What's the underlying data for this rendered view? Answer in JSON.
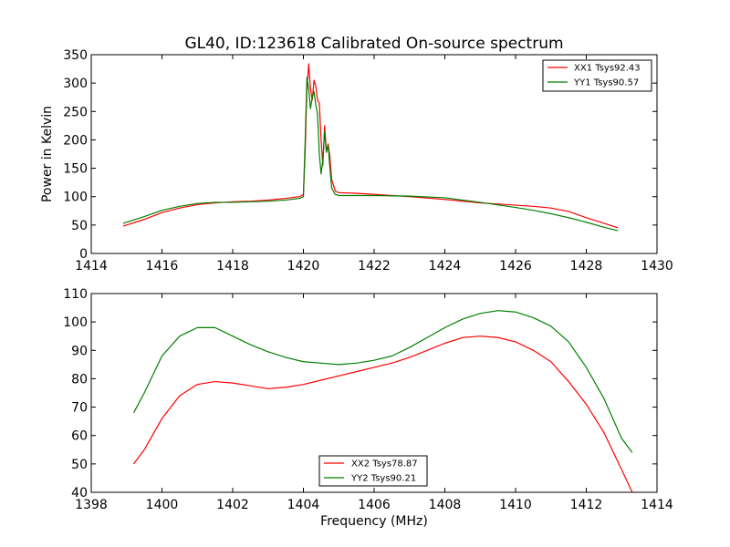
{
  "chart_data": [
    {
      "type": "line",
      "title": "GL40, ID:123618 Calibrated On-source spectrum",
      "xlabel": "",
      "ylabel": "Power in Kelvin",
      "xlim": [
        1414,
        1430
      ],
      "ylim": [
        0,
        350
      ],
      "xticks": [
        1414,
        1416,
        1418,
        1420,
        1422,
        1424,
        1426,
        1428,
        1430
      ],
      "yticks": [
        0,
        50,
        100,
        150,
        200,
        250,
        300,
        350
      ],
      "grid": false,
      "legend_position": "top-right",
      "series": [
        {
          "name": "XX1 Tsys92.43",
          "color": "#ff0000",
          "points": [
            [
              1414.9,
              48
            ],
            [
              1415.5,
              60
            ],
            [
              1416.0,
              72
            ],
            [
              1416.5,
              80
            ],
            [
              1417.0,
              86
            ],
            [
              1417.5,
              89
            ],
            [
              1418.0,
              91
            ],
            [
              1418.5,
              92
            ],
            [
              1419.0,
              94
            ],
            [
              1419.5,
              97
            ],
            [
              1419.9,
              100
            ],
            [
              1420.0,
              104
            ],
            [
              1420.05,
              180
            ],
            [
              1420.1,
              290
            ],
            [
              1420.15,
              334
            ],
            [
              1420.2,
              290
            ],
            [
              1420.25,
              270
            ],
            [
              1420.3,
              305
            ],
            [
              1420.35,
              295
            ],
            [
              1420.4,
              270
            ],
            [
              1420.45,
              265
            ],
            [
              1420.5,
              200
            ],
            [
              1420.55,
              155
            ],
            [
              1420.6,
              225
            ],
            [
              1420.65,
              180
            ],
            [
              1420.7,
              193
            ],
            [
              1420.75,
              170
            ],
            [
              1420.8,
              130
            ],
            [
              1420.9,
              110
            ],
            [
              1421.0,
              107
            ],
            [
              1421.5,
              106
            ],
            [
              1422.0,
              104
            ],
            [
              1423.0,
              100
            ],
            [
              1424.0,
              95
            ],
            [
              1425.0,
              89
            ],
            [
              1426.0,
              85
            ],
            [
              1426.5,
              83
            ],
            [
              1427.0,
              80
            ],
            [
              1427.5,
              74
            ],
            [
              1428.0,
              63
            ],
            [
              1428.5,
              53
            ],
            [
              1428.9,
              45
            ]
          ]
        },
        {
          "name": "YY1 Tsys90.57",
          "color": "#007f00",
          "points": [
            [
              1414.9,
              53
            ],
            [
              1415.5,
              65
            ],
            [
              1416.0,
              76
            ],
            [
              1416.5,
              83
            ],
            [
              1417.0,
              88
            ],
            [
              1417.5,
              90
            ],
            [
              1418.0,
              90
            ],
            [
              1418.5,
              91
            ],
            [
              1419.0,
              92
            ],
            [
              1419.5,
              94
            ],
            [
              1419.9,
              97
            ],
            [
              1420.0,
              100
            ],
            [
              1420.05,
              200
            ],
            [
              1420.1,
              310
            ],
            [
              1420.15,
              290
            ],
            [
              1420.2,
              255
            ],
            [
              1420.25,
              275
            ],
            [
              1420.3,
              285
            ],
            [
              1420.35,
              262
            ],
            [
              1420.4,
              245
            ],
            [
              1420.45,
              175
            ],
            [
              1420.5,
              140
            ],
            [
              1420.55,
              165
            ],
            [
              1420.6,
              215
            ],
            [
              1420.65,
              178
            ],
            [
              1420.7,
              190
            ],
            [
              1420.75,
              150
            ],
            [
              1420.8,
              115
            ],
            [
              1420.9,
              104
            ],
            [
              1421.0,
              102
            ],
            [
              1421.5,
              102
            ],
            [
              1422.0,
              102
            ],
            [
              1423.0,
              101
            ],
            [
              1424.0,
              98
            ],
            [
              1425.0,
              90
            ],
            [
              1426.0,
              81
            ],
            [
              1426.5,
              76
            ],
            [
              1427.0,
              70
            ],
            [
              1427.5,
              63
            ],
            [
              1428.0,
              55
            ],
            [
              1428.5,
              46
            ],
            [
              1428.9,
              40
            ]
          ]
        }
      ]
    },
    {
      "type": "line",
      "title": "",
      "xlabel": "Frequency (MHz)",
      "ylabel": "",
      "xlim": [
        1398,
        1414
      ],
      "ylim": [
        40,
        110
      ],
      "xticks": [
        1398,
        1400,
        1402,
        1404,
        1406,
        1408,
        1410,
        1412,
        1414
      ],
      "yticks": [
        40,
        50,
        60,
        70,
        80,
        90,
        100,
        110
      ],
      "grid": false,
      "legend_position": "bottom-center",
      "series": [
        {
          "name": "XX2 Tsys78.87",
          "color": "#ff0000",
          "points": [
            [
              1399.2,
              50
            ],
            [
              1399.5,
              55
            ],
            [
              1400.0,
              66
            ],
            [
              1400.5,
              74
            ],
            [
              1401.0,
              78
            ],
            [
              1401.5,
              79
            ],
            [
              1402.0,
              78.5
            ],
            [
              1402.5,
              77.5
            ],
            [
              1403.0,
              76.5
            ],
            [
              1403.5,
              77
            ],
            [
              1404.0,
              78
            ],
            [
              1404.5,
              79.5
            ],
            [
              1405.0,
              81
            ],
            [
              1405.5,
              82.5
            ],
            [
              1406.0,
              84
            ],
            [
              1406.5,
              85.5
            ],
            [
              1407.0,
              87.5
            ],
            [
              1407.5,
              90
            ],
            [
              1408.0,
              92.5
            ],
            [
              1408.5,
              94.5
            ],
            [
              1409.0,
              95
            ],
            [
              1409.5,
              94.5
            ],
            [
              1410.0,
              93
            ],
            [
              1410.5,
              90
            ],
            [
              1411.0,
              86
            ],
            [
              1411.5,
              79
            ],
            [
              1412.0,
              71
            ],
            [
              1412.5,
              61
            ],
            [
              1413.0,
              48
            ],
            [
              1413.3,
              40
            ]
          ]
        },
        {
          "name": "YY2 Tsys90.21",
          "color": "#007f00",
          "points": [
            [
              1399.2,
              68
            ],
            [
              1399.5,
              75
            ],
            [
              1400.0,
              88
            ],
            [
              1400.5,
              95
            ],
            [
              1401.0,
              98
            ],
            [
              1401.5,
              98
            ],
            [
              1402.0,
              95
            ],
            [
              1402.5,
              92
            ],
            [
              1403.0,
              89.5
            ],
            [
              1403.5,
              87.5
            ],
            [
              1404.0,
              86
            ],
            [
              1404.5,
              85.5
            ],
            [
              1405.0,
              85
            ],
            [
              1405.5,
              85.5
            ],
            [
              1406.0,
              86.5
            ],
            [
              1406.5,
              88
            ],
            [
              1407.0,
              91
            ],
            [
              1407.5,
              94.5
            ],
            [
              1408.0,
              98
            ],
            [
              1408.5,
              101
            ],
            [
              1409.0,
              103
            ],
            [
              1409.5,
              104
            ],
            [
              1410.0,
              103.5
            ],
            [
              1410.5,
              101.5
            ],
            [
              1411.0,
              98.5
            ],
            [
              1411.5,
              93
            ],
            [
              1412.0,
              84
            ],
            [
              1412.5,
              73
            ],
            [
              1413.0,
              59
            ],
            [
              1413.3,
              54
            ]
          ]
        }
      ]
    }
  ]
}
